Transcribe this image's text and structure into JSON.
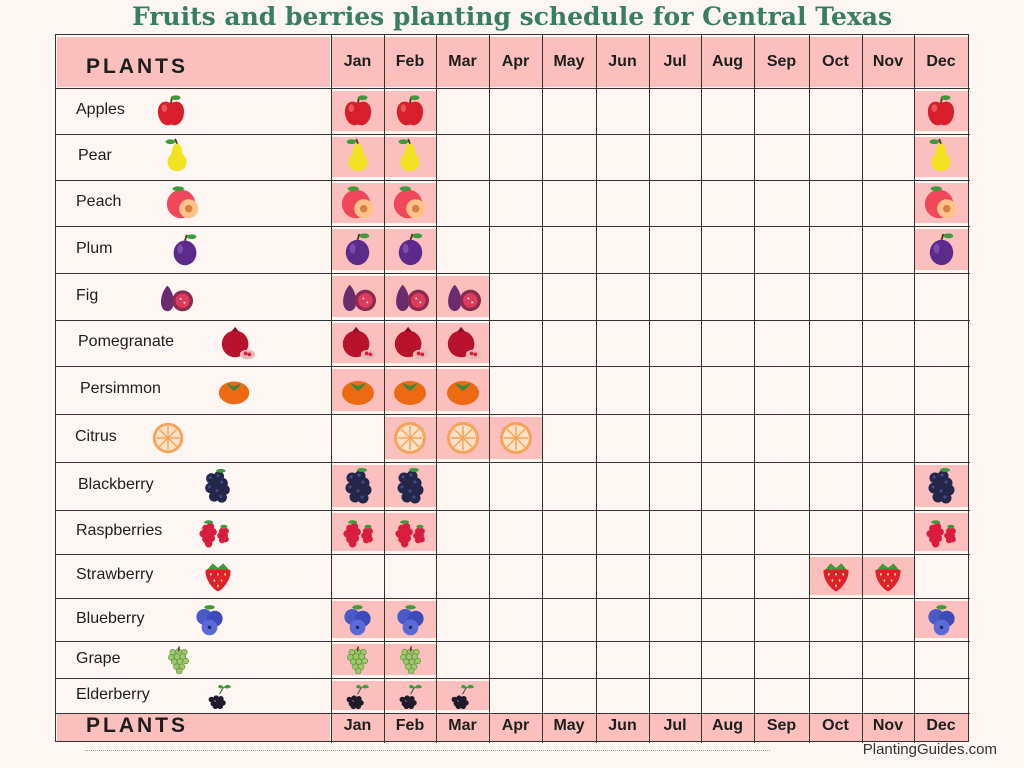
{
  "title": "Fruits and berries planting schedule for Central Texas",
  "header_label": "PLANTS",
  "months": [
    "Jan",
    "Feb",
    "Mar",
    "Apr",
    "May",
    "Jun",
    "Jul",
    "Aug",
    "Sep",
    "Oct",
    "Nov",
    "Dec"
  ],
  "plants": [
    {
      "name": "Apples",
      "icon": "apple-icon",
      "months": [
        0,
        1,
        11
      ]
    },
    {
      "name": "Pear",
      "icon": "pear-icon",
      "months": [
        0,
        1,
        11
      ]
    },
    {
      "name": "Peach",
      "icon": "peach-icon",
      "months": [
        0,
        1,
        11
      ]
    },
    {
      "name": "Plum",
      "icon": "plum-icon",
      "months": [
        0,
        1,
        11
      ]
    },
    {
      "name": "Fig",
      "icon": "fig-icon",
      "months": [
        0,
        1,
        2
      ]
    },
    {
      "name": "Pomegranate",
      "icon": "pomegranate-icon",
      "months": [
        0,
        1,
        2
      ]
    },
    {
      "name": "Persimmon",
      "icon": "persimmon-icon",
      "months": [
        0,
        1,
        2
      ]
    },
    {
      "name": "Citrus",
      "icon": "citrus-icon",
      "months": [
        1,
        2,
        3
      ]
    },
    {
      "name": "Blackberry",
      "icon": "blackberry-icon",
      "months": [
        0,
        1,
        11
      ]
    },
    {
      "name": "Raspberries",
      "icon": "raspberry-icon",
      "months": [
        0,
        1,
        11
      ]
    },
    {
      "name": "Strawberry",
      "icon": "strawberry-icon",
      "months": [
        9,
        10
      ]
    },
    {
      "name": "Blueberry",
      "icon": "blueberry-icon",
      "months": [
        0,
        1,
        11
      ]
    },
    {
      "name": "Grape",
      "icon": "grape-icon",
      "months": [
        0,
        1
      ]
    },
    {
      "name": "Elderberry",
      "icon": "elderberry-icon",
      "months": [
        0,
        1,
        2
      ]
    }
  ],
  "footer_label": "PLANTS",
  "credit": "PlantingGuides.com"
}
